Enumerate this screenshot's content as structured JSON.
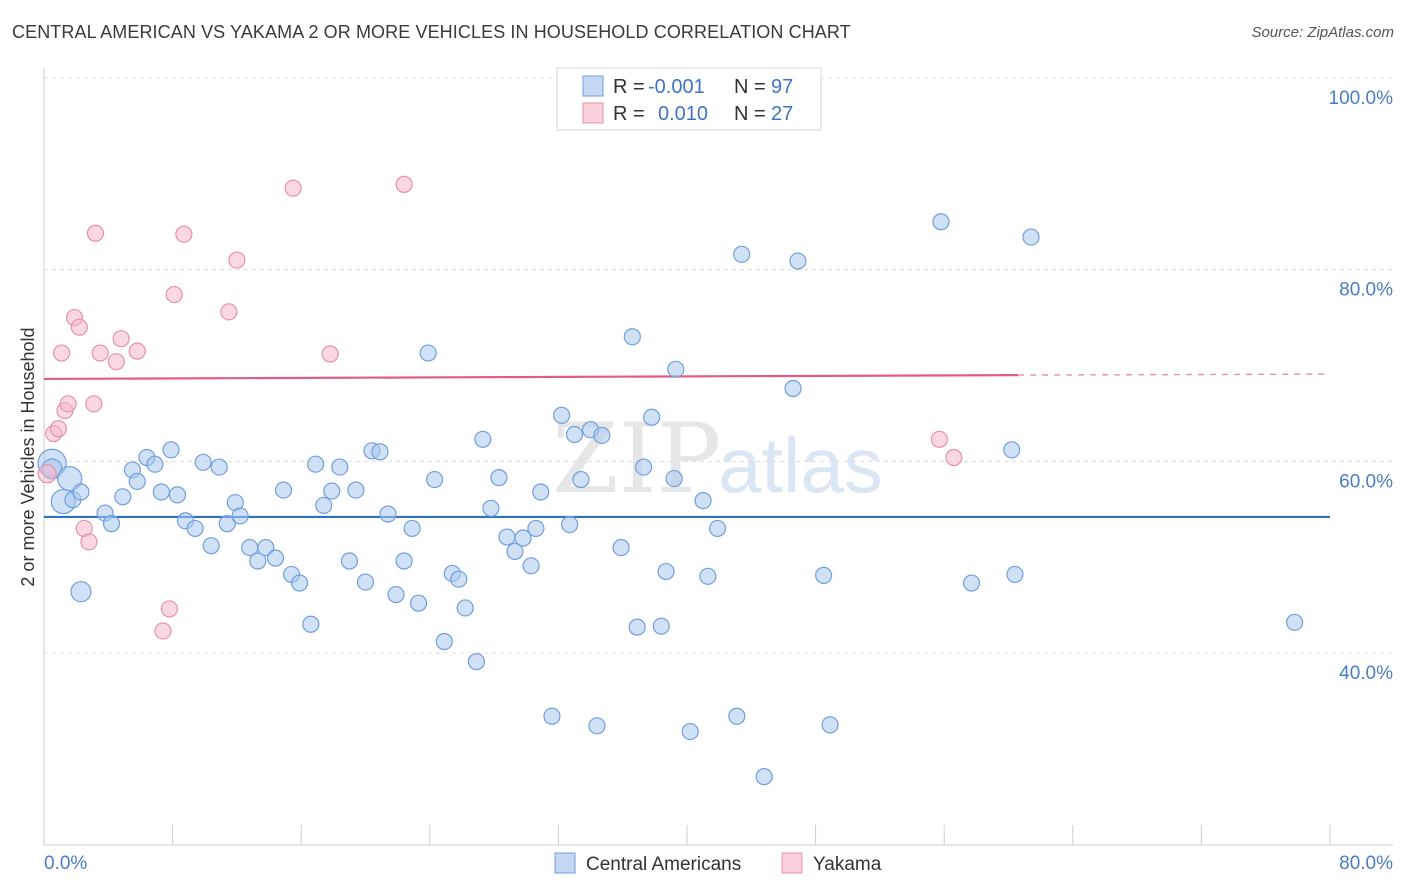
{
  "title": "CENTRAL AMERICAN VS YAKAMA 2 OR MORE VEHICLES IN HOUSEHOLD CORRELATION CHART",
  "source": "Source: ZipAtlas.com",
  "watermark": {
    "zip": "ZIP",
    "atlas": "atlas"
  },
  "legend": {
    "rows": [
      {
        "r_label": "R =",
        "r_value": "-0.001",
        "n_label": "N =",
        "n_value": "97",
        "color": "#aac8ee"
      },
      {
        "r_label": "R =",
        "r_value": "0.010",
        "n_label": "N =",
        "n_value": "27",
        "color": "#f5b8ca"
      }
    ]
  },
  "chart_data": {
    "type": "scatter",
    "title": "CENTRAL AMERICAN VS YAKAMA 2 OR MORE VEHICLES IN HOUSEHOLD CORRELATION CHART",
    "xlabel": "",
    "ylabel": "2 or more Vehicles in Household",
    "xlim": [
      0,
      80
    ],
    "ylim": [
      20,
      102
    ],
    "x_tick_labels": [
      "0.0%",
      "80.0%"
    ],
    "y_ticks": [
      40,
      60,
      80,
      100
    ],
    "y_tick_labels": [
      "40.0%",
      "60.0%",
      "80.0%",
      "100.0%"
    ],
    "grid": true,
    "legend_position": "top-center",
    "series": [
      {
        "name": "Central Americans",
        "color": "#aac8ee",
        "stroke": "#6f9fdd",
        "trend": {
          "x": [
            0,
            80
          ],
          "y": [
            54.2,
            54.2
          ],
          "color": "#2e6fc9"
        },
        "points": [
          [
            0.5,
            59.8,
            14
          ],
          [
            0.5,
            59.2,
            10
          ],
          [
            1.2,
            55.8,
            12
          ],
          [
            1.6,
            58.2,
            12
          ],
          [
            1.8,
            56.0,
            8
          ],
          [
            2.3,
            56.8,
            8
          ],
          [
            2.3,
            46.4,
            10
          ],
          [
            3.8,
            54.6,
            8
          ],
          [
            4.2,
            53.5,
            8
          ],
          [
            4.9,
            56.3,
            8
          ],
          [
            5.5,
            59.1,
            8
          ],
          [
            5.8,
            57.9,
            8
          ],
          [
            6.4,
            60.4,
            8
          ],
          [
            6.9,
            59.7,
            8
          ],
          [
            7.3,
            56.8,
            8
          ],
          [
            7.9,
            61.2,
            8
          ],
          [
            8.3,
            56.5,
            8
          ],
          [
            8.8,
            53.8,
            8
          ],
          [
            9.4,
            53.0,
            8
          ],
          [
            9.9,
            59.9,
            8
          ],
          [
            10.4,
            51.2,
            8
          ],
          [
            10.9,
            59.4,
            8
          ],
          [
            11.4,
            53.5,
            8
          ],
          [
            11.9,
            55.7,
            8
          ],
          [
            12.2,
            54.3,
            8
          ],
          [
            12.8,
            51.0,
            8
          ],
          [
            13.3,
            49.6,
            8
          ],
          [
            13.8,
            51.0,
            8
          ],
          [
            14.4,
            49.9,
            8
          ],
          [
            14.9,
            57.0,
            8
          ],
          [
            15.4,
            48.2,
            8
          ],
          [
            15.9,
            47.3,
            8
          ],
          [
            16.6,
            43.0,
            8
          ],
          [
            16.9,
            59.7,
            8
          ],
          [
            17.4,
            55.4,
            8
          ],
          [
            17.9,
            56.9,
            8
          ],
          [
            18.4,
            59.4,
            8
          ],
          [
            19.0,
            49.6,
            8
          ],
          [
            19.4,
            57.0,
            8
          ],
          [
            20.0,
            47.4,
            8
          ],
          [
            20.4,
            61.1,
            8
          ],
          [
            20.9,
            61.0,
            8
          ],
          [
            21.4,
            54.5,
            8
          ],
          [
            21.9,
            46.1,
            8
          ],
          [
            22.4,
            49.6,
            8
          ],
          [
            22.9,
            53.0,
            8
          ],
          [
            23.3,
            45.2,
            8
          ],
          [
            23.9,
            71.3,
            8
          ],
          [
            24.3,
            58.1,
            8
          ],
          [
            24.9,
            41.2,
            8
          ],
          [
            25.4,
            48.3,
            8
          ],
          [
            25.8,
            47.7,
            8
          ],
          [
            26.2,
            44.7,
            8
          ],
          [
            26.9,
            39.1,
            8
          ],
          [
            27.3,
            62.3,
            8
          ],
          [
            27.8,
            55.1,
            8
          ],
          [
            28.3,
            58.3,
            8
          ],
          [
            28.8,
            52.1,
            8
          ],
          [
            29.3,
            50.6,
            8
          ],
          [
            29.8,
            52.0,
            8
          ],
          [
            30.3,
            49.1,
            8
          ],
          [
            30.6,
            53.0,
            8
          ],
          [
            30.9,
            56.8,
            8
          ],
          [
            31.6,
            33.4,
            8
          ],
          [
            32.2,
            64.8,
            8
          ],
          [
            32.7,
            53.4,
            8
          ],
          [
            33.0,
            62.8,
            8
          ],
          [
            33.4,
            58.1,
            8
          ],
          [
            34.0,
            63.3,
            8
          ],
          [
            34.7,
            62.7,
            8
          ],
          [
            34.4,
            32.4,
            8
          ],
          [
            35.9,
            51.0,
            8
          ],
          [
            36.6,
            73.0,
            8
          ],
          [
            36.9,
            42.7,
            8
          ],
          [
            37.3,
            59.4,
            8
          ],
          [
            37.8,
            64.6,
            8
          ],
          [
            38.4,
            42.8,
            8
          ],
          [
            38.7,
            48.5,
            8
          ],
          [
            39.2,
            58.2,
            8
          ],
          [
            39.3,
            69.6,
            8
          ],
          [
            40.2,
            31.8,
            8
          ],
          [
            41.0,
            55.9,
            8
          ],
          [
            41.3,
            48.0,
            8
          ],
          [
            41.9,
            53.0,
            8
          ],
          [
            43.1,
            33.4,
            8
          ],
          [
            43.4,
            81.6,
            8
          ],
          [
            44.8,
            27.1,
            8
          ],
          [
            46.9,
            80.9,
            8
          ],
          [
            46.6,
            67.6,
            8
          ],
          [
            48.5,
            48.1,
            8
          ],
          [
            48.9,
            32.5,
            8
          ],
          [
            55.8,
            85.0,
            8
          ],
          [
            57.7,
            47.3,
            8
          ],
          [
            60.2,
            61.2,
            8
          ],
          [
            60.4,
            48.2,
            8
          ],
          [
            61.4,
            83.4,
            8
          ],
          [
            77.8,
            43.2,
            8
          ]
        ]
      },
      {
        "name": "Yakama",
        "color": "#f5b8ca",
        "stroke": "#e790aa",
        "trend": {
          "x": [
            0,
            60.6
          ],
          "y": [
            68.6,
            69.0
          ],
          "dashed_to": {
            "x": 80,
            "y": 69.1
          },
          "color": "#e05c86"
        },
        "points": [
          [
            0.2,
            58.7,
            9
          ],
          [
            0.6,
            62.9,
            8
          ],
          [
            0.9,
            63.4,
            8
          ],
          [
            1.1,
            71.3,
            8
          ],
          [
            1.3,
            65.3,
            8
          ],
          [
            1.5,
            66.0,
            8
          ],
          [
            1.9,
            75.0,
            8
          ],
          [
            2.2,
            74.0,
            8
          ],
          [
            2.5,
            53.0,
            8
          ],
          [
            2.8,
            51.6,
            8
          ],
          [
            3.1,
            66.0,
            8
          ],
          [
            3.2,
            83.8,
            8
          ],
          [
            3.5,
            71.3,
            8
          ],
          [
            4.5,
            70.4,
            8
          ],
          [
            4.8,
            72.8,
            8
          ],
          [
            5.8,
            71.5,
            8
          ],
          [
            7.4,
            42.3,
            8
          ],
          [
            7.8,
            44.6,
            8
          ],
          [
            8.1,
            77.4,
            8
          ],
          [
            8.7,
            83.7,
            8
          ],
          [
            11.5,
            75.6,
            8
          ],
          [
            12.0,
            81.0,
            8
          ],
          [
            15.5,
            88.5,
            8
          ],
          [
            17.8,
            71.2,
            8
          ],
          [
            22.4,
            88.9,
            8
          ],
          [
            55.7,
            62.3,
            8
          ],
          [
            56.6,
            60.4,
            8
          ]
        ]
      }
    ]
  }
}
